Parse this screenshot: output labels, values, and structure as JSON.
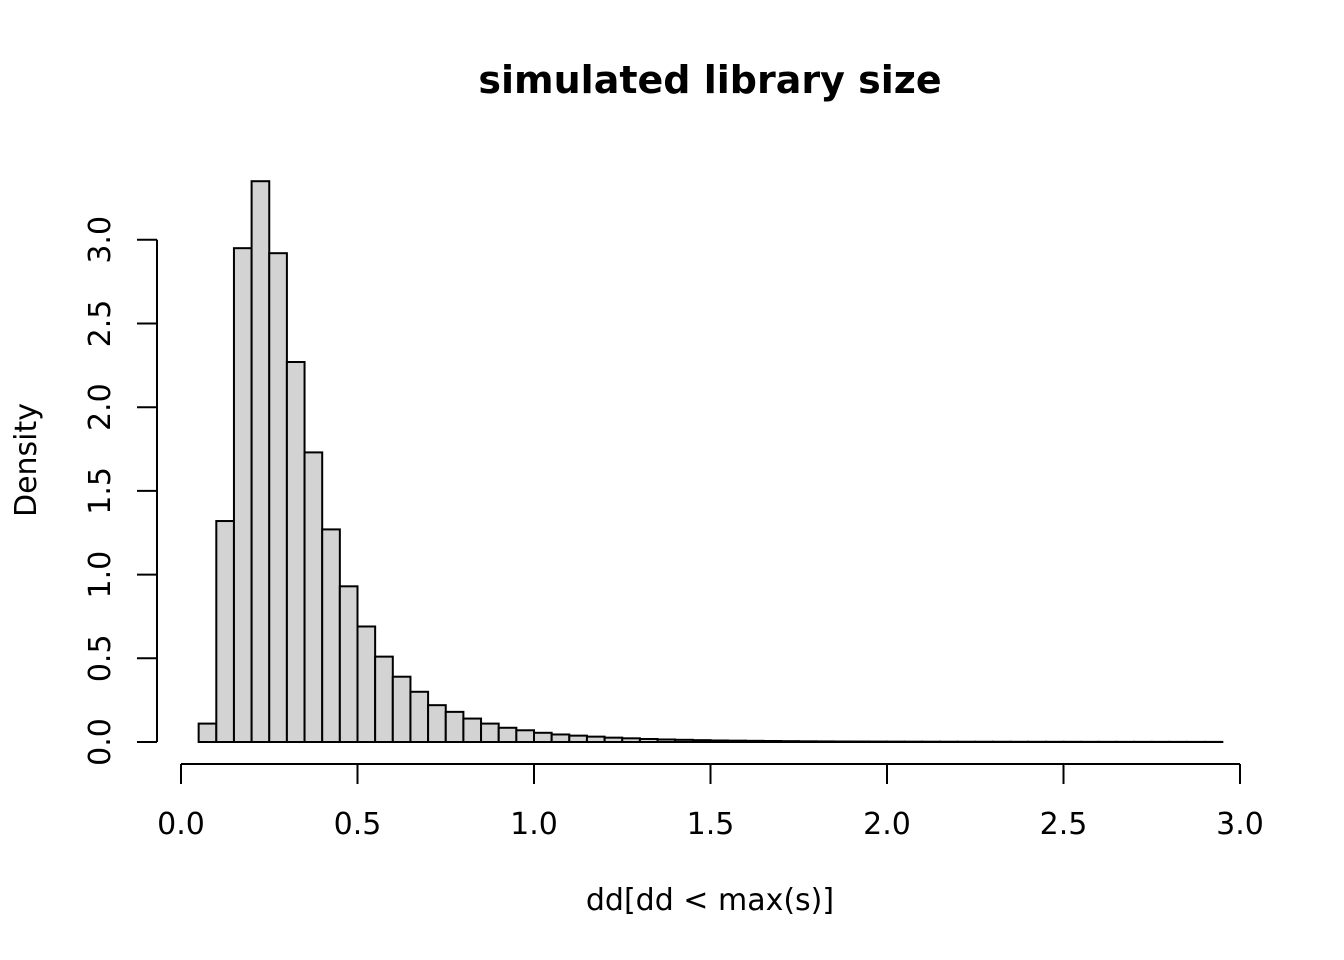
{
  "chart_data": {
    "type": "bar",
    "title": "simulated library size",
    "xlabel": "dd[dd < max(s)]",
    "ylabel": "Density",
    "xlim": [
      0,
      3
    ],
    "ylim": [
      0,
      3.35
    ],
    "x_ticks": [
      "0.0",
      "0.5",
      "1.0",
      "1.5",
      "2.0",
      "2.5",
      "3.0"
    ],
    "x_tick_values": [
      0,
      0.5,
      1.0,
      1.5,
      2.0,
      2.5,
      3.0
    ],
    "y_ticks": [
      "0.0",
      "0.5",
      "1.0",
      "1.5",
      "2.0",
      "2.5",
      "3.0"
    ],
    "y_tick_values": [
      0,
      0.5,
      1.0,
      1.5,
      2.0,
      2.5,
      3.0
    ],
    "bin_start": 0.05,
    "bin_width": 0.05,
    "values": [
      0.11,
      1.32,
      2.95,
      3.35,
      2.92,
      2.27,
      1.73,
      1.27,
      0.93,
      0.69,
      0.51,
      0.39,
      0.3,
      0.22,
      0.18,
      0.14,
      0.11,
      0.085,
      0.07,
      0.055,
      0.045,
      0.038,
      0.032,
      0.026,
      0.022,
      0.018,
      0.015,
      0.013,
      0.011,
      0.009,
      0.008,
      0.007,
      0.006,
      0.005,
      0.004,
      0.0035,
      0.003,
      0.0028,
      0.0025,
      0.0022,
      0.002,
      0.0018,
      0.0016,
      0.0015,
      0.0014,
      0.0013,
      0.0012,
      0.0011,
      0.001,
      0.001,
      0.0009,
      0.0009,
      0.0008,
      0.0008,
      0.0007,
      0.0007,
      0.0006,
      0.0006
    ]
  }
}
